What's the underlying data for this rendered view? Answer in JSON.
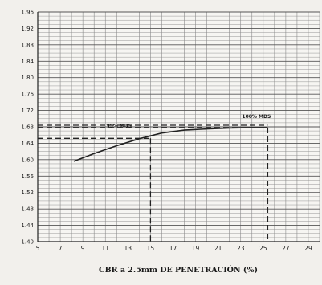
{
  "chart_data": {
    "type": "line",
    "xlabel": "CBR a 2.5mm DE PENETRACIÓN  (%)",
    "ylabel": "",
    "xlim": [
      5,
      30
    ],
    "ylim": [
      1.4,
      1.96
    ],
    "x_ticks": [
      5,
      7,
      9,
      11,
      13,
      15,
      17,
      19,
      21,
      23,
      25,
      27,
      29
    ],
    "y_ticks": [
      1.4,
      1.44,
      1.48,
      1.52,
      1.56,
      1.6,
      1.64,
      1.68,
      1.72,
      1.76,
      1.8,
      1.84,
      1.88,
      1.92,
      1.96
    ],
    "grid": true,
    "series": [
      {
        "x": [
          8.2,
          10,
          12,
          14,
          16,
          18,
          20,
          22,
          24,
          25.4
        ],
        "y": [
          1.596,
          1.615,
          1.634,
          1.651,
          1.665,
          1.672,
          1.675,
          1.677,
          1.678,
          1.678
        ]
      }
    ],
    "annotations": [
      {
        "text": "95% MDS",
        "x": 15.0,
        "y": 1.652
      },
      {
        "text": "100% MDS",
        "x": 25.4,
        "y": 1.678
      }
    ],
    "colors": {
      "grid": "#8a8a8a",
      "line": "#222222",
      "background": "#f2f0ec"
    }
  }
}
